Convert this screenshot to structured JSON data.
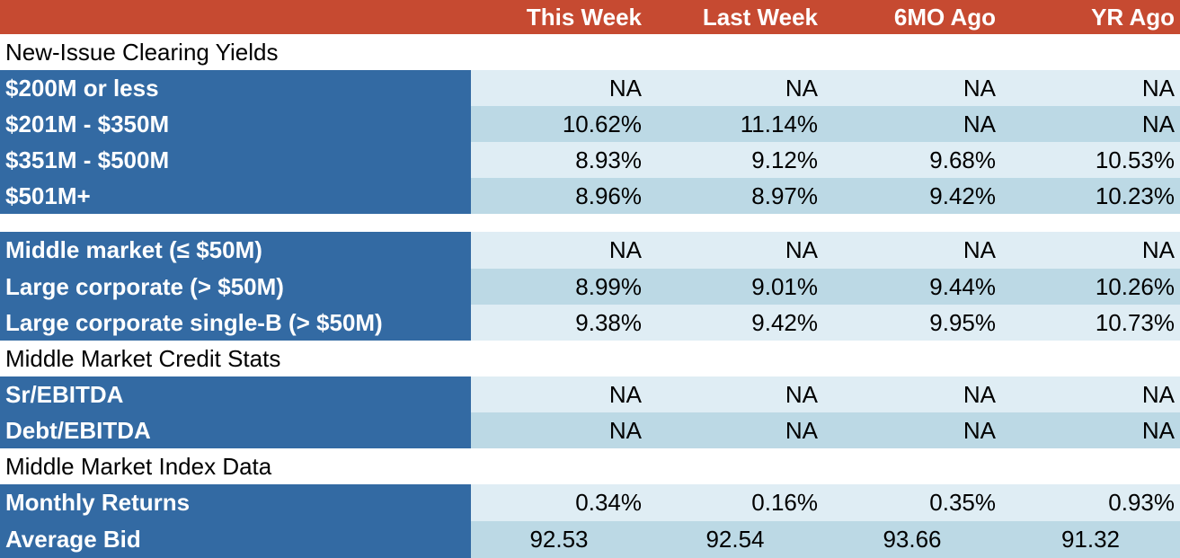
{
  "header": {
    "columns": [
      "",
      "This Week",
      "Last Week",
      "6MO Ago",
      "YR Ago"
    ]
  },
  "sections": [
    {
      "title": "New-Issue Clearing Yields",
      "rows": [
        {
          "label": "$200M or less",
          "values": [
            "NA",
            "NA",
            "NA",
            "NA"
          ]
        },
        {
          "label": "$201M - $350M",
          "values": [
            "10.62%",
            "11.14%",
            "NA",
            "NA"
          ]
        },
        {
          "label": "$351M - $500M",
          "values": [
            "8.93%",
            "9.12%",
            "9.68%",
            "10.53%"
          ]
        },
        {
          "label": "$501M+",
          "values": [
            "8.96%",
            "8.97%",
            "9.42%",
            "10.23%"
          ]
        }
      ]
    },
    {
      "title": "",
      "rows": [
        {
          "label": "Middle market (≤ $50M)",
          "values": [
            "NA",
            "NA",
            "NA",
            "NA"
          ]
        },
        {
          "label": "Large corporate (> $50M)",
          "values": [
            "8.99%",
            "9.01%",
            "9.44%",
            "10.26%"
          ]
        },
        {
          "label": "Large corporate single-B (> $50M)",
          "values": [
            "9.38%",
            "9.42%",
            "9.95%",
            "10.73%"
          ]
        }
      ]
    },
    {
      "title": "Middle Market Credit Stats",
      "rows": [
        {
          "label": "Sr/EBITDA",
          "values": [
            "NA",
            "NA",
            "NA",
            "NA"
          ]
        },
        {
          "label": "Debt/EBITDA",
          "values": [
            "NA",
            "NA",
            "NA",
            "NA"
          ]
        }
      ]
    },
    {
      "title": "Middle Market Index Data",
      "rows": [
        {
          "label": "Monthly Returns",
          "values": [
            "0.34%",
            "0.16%",
            "0.35%",
            "0.93%"
          ]
        },
        {
          "label": "Average Bid",
          "values": [
            "92.53",
            "92.54",
            "93.66",
            "91.32"
          ]
        }
      ]
    }
  ],
  "colors": {
    "header_bg": "#c64a31",
    "label_bg": "#336aa3",
    "value_light_bg": "#dfedf4",
    "value_dark_bg": "#bcd9e5"
  }
}
